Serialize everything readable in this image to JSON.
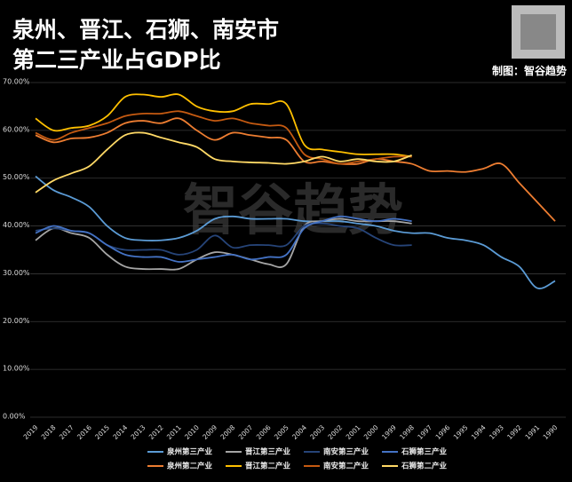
{
  "chart_data": {
    "type": "line",
    "title": "泉州、晋江、石狮、南安市",
    "subtitle": "第二三产业占GDP比",
    "credit": "制图：智谷趋势",
    "watermark": "智谷趋势",
    "categories": [
      "2019",
      "2018",
      "2017",
      "2016",
      "2015",
      "2014",
      "2013",
      "2012",
      "2011",
      "2010",
      "2009",
      "2008",
      "2007",
      "2006",
      "2005",
      "2004",
      "2003",
      "2002",
      "2001",
      "2000",
      "1999",
      "1998",
      "1997",
      "1996",
      "1995",
      "1994",
      "1993",
      "1992",
      "1991",
      "1990"
    ],
    "ylim": [
      0,
      70
    ],
    "yticks": [
      {
        "value": 0,
        "label": "0.00%"
      },
      {
        "value": 10,
        "label": "10.00%"
      },
      {
        "value": 20,
        "label": "20.00%"
      },
      {
        "value": 30,
        "label": "30.00%"
      },
      {
        "value": 40,
        "label": "40.00%"
      },
      {
        "value": 50,
        "label": "50.00%"
      },
      {
        "value": 60,
        "label": "60.00%"
      },
      {
        "value": 70,
        "label": "70.00%"
      }
    ],
    "grid": true,
    "legend": "bottom",
    "series": [
      {
        "name": "泉州第三产业",
        "color": "#5b9bd5",
        "values": [
          50.4,
          47.5,
          46,
          44,
          40,
          37.5,
          37,
          37,
          37.5,
          39,
          41.5,
          42,
          41.5,
          41.5,
          41.5,
          41,
          41,
          41,
          40.5,
          40,
          39,
          38.5,
          38.5,
          37.5,
          37,
          36,
          33.5,
          31.5,
          27,
          28.5
        ]
      },
      {
        "name": "晋江第三产业",
        "color": "#a5a5a5",
        "values": [
          37,
          39.5,
          38.5,
          37.5,
          34,
          31.5,
          31,
          31,
          31,
          33,
          34.5,
          34,
          33,
          32,
          32,
          40,
          41,
          41.5,
          41,
          41,
          41,
          40.5,
          null,
          null,
          null,
          null,
          null,
          null,
          null,
          null
        ]
      },
      {
        "name": "南安第三产业",
        "color": "#264478",
        "values": [
          39,
          39.5,
          39,
          38.5,
          36,
          35,
          35,
          35,
          34,
          35,
          38,
          35.5,
          36,
          36,
          36,
          40,
          40.5,
          40,
          39.5,
          37.5,
          36,
          36,
          null,
          null,
          null,
          null,
          null,
          null,
          null,
          null
        ]
      },
      {
        "name": "石狮第三产业",
        "color": "#4472c4",
        "values": [
          38.5,
          40,
          39,
          38.5,
          36,
          34,
          33.5,
          33.5,
          32.5,
          33,
          33.5,
          34,
          33,
          33.5,
          34,
          39.5,
          41,
          42,
          41.5,
          41,
          41.5,
          41,
          null,
          null,
          null,
          null,
          null,
          null,
          null,
          null
        ]
      },
      {
        "name": "泉州第二产业",
        "color": "#ed7d31",
        "values": [
          59,
          57.5,
          58.3,
          58.5,
          59.5,
          61.5,
          62,
          61.5,
          62.5,
          60,
          58,
          59.5,
          59,
          58.5,
          58,
          53.5,
          53.5,
          53,
          53,
          54,
          53.5,
          53,
          51.5,
          51.5,
          51.3,
          52,
          53,
          49,
          45,
          41
        ]
      },
      {
        "name": "晋江第二产业",
        "color": "#ffc000",
        "values": [
          62.5,
          60,
          60.5,
          61,
          63,
          67,
          67.5,
          67,
          67.5,
          65,
          64,
          64,
          65.5,
          65.5,
          65.5,
          57,
          56,
          55.5,
          55,
          55,
          55,
          54.5,
          null,
          null,
          null,
          null,
          null,
          null,
          null,
          null
        ]
      },
      {
        "name": "南安第二产业",
        "color": "#c55a11",
        "values": [
          59.5,
          58,
          59.5,
          60.5,
          61.5,
          63,
          63.5,
          63.5,
          64,
          63,
          62,
          62.5,
          61.5,
          61,
          60.5,
          55,
          54,
          53,
          53.5,
          54,
          54.5,
          54.5,
          null,
          null,
          null,
          null,
          null,
          null,
          null,
          null
        ]
      },
      {
        "name": "石狮第二产业",
        "color": "#ffd966",
        "values": [
          47,
          49.5,
          51,
          52.5,
          56,
          59,
          59.5,
          58.5,
          57.5,
          56.5,
          54,
          53.5,
          53.3,
          53.2,
          53,
          53.5,
          54.5,
          53.5,
          54,
          53.5,
          53.5,
          54.8,
          null,
          null,
          null,
          null,
          null,
          null,
          null,
          null
        ]
      }
    ]
  }
}
